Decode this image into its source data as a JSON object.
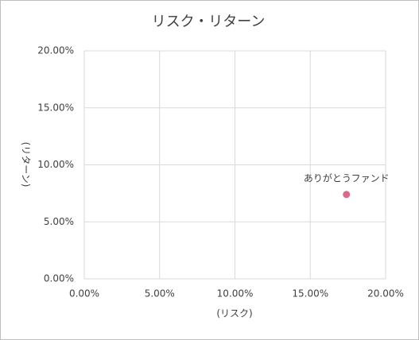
{
  "chart_data": {
    "type": "scatter",
    "title": "リスク・リターン",
    "x_label": "(リスク)",
    "y_label": "(リターン)",
    "series": [
      {
        "name": "ありがとうファンド",
        "color": "#e0668a",
        "x": [
          17.4
        ],
        "values": [
          7.4
        ]
      }
    ],
    "xlim": [
      0,
      20
    ],
    "ylim": [
      0,
      20
    ],
    "xticks": [
      {
        "value": 0,
        "label": "0.00%"
      },
      {
        "value": 5,
        "label": "5.00%"
      },
      {
        "value": 10,
        "label": "10.00%"
      },
      {
        "value": 15,
        "label": "15.00%"
      },
      {
        "value": 20,
        "label": "20.00%"
      }
    ],
    "yticks": [
      {
        "value": 0,
        "label": "0.00%"
      },
      {
        "value": 5,
        "label": "5.00%"
      },
      {
        "value": 10,
        "label": "10.00%"
      },
      {
        "value": 15,
        "label": "15.00%"
      },
      {
        "value": 20,
        "label": "20.00%"
      }
    ],
    "grid": true
  }
}
